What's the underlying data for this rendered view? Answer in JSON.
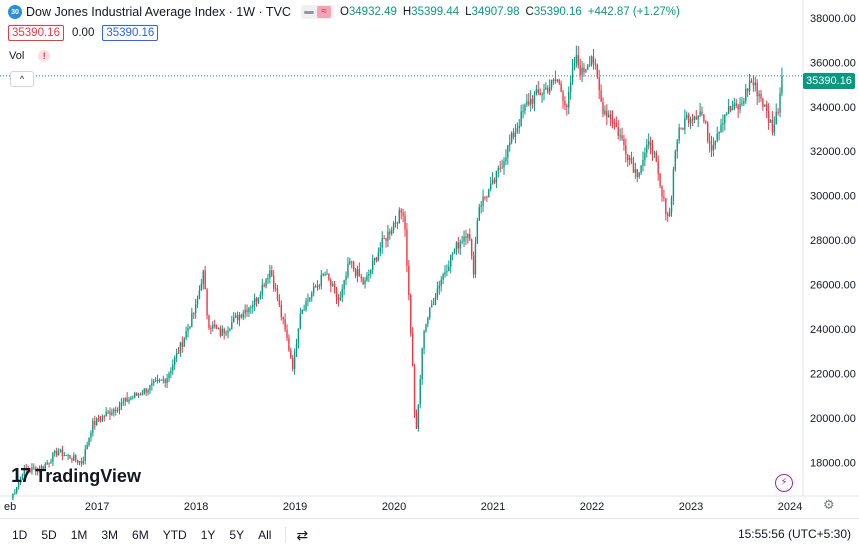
{
  "header": {
    "symbol_badge": "30",
    "title": "Dow Jones Industrial Average Index · 1W · TVC",
    "ohlc": [
      {
        "label": "O",
        "value": "34932.49"
      },
      {
        "label": "H",
        "value": "35399.44"
      },
      {
        "label": "L",
        "value": "34907.98"
      },
      {
        "label": "C",
        "value": "35390.16"
      }
    ],
    "change": "+442.87 (+1.27%)",
    "bid": "35390.16",
    "spread": "0.00",
    "ask": "35390.16",
    "vol_label": "Vol",
    "vol_warning": "!",
    "collapse": "^"
  },
  "logo": {
    "mark": "17",
    "text": "TradingView"
  },
  "toolbar": {
    "timeframes": [
      "1D",
      "5D",
      "1M",
      "3M",
      "6M",
      "YTD",
      "1Y",
      "5Y",
      "All"
    ],
    "time": "15:55:56 (UTC+5:30)"
  },
  "colors": {
    "up": "#089981",
    "down": "#f23645",
    "accent": "#2962ff"
  },
  "chart_data": {
    "type": "candlestick",
    "ylim": [
      16500,
      38800
    ],
    "y_ticks": [
      18000,
      20000,
      22000,
      24000,
      26000,
      28000,
      30000,
      32000,
      34000,
      36000,
      38000
    ],
    "y_tick_labels": [
      "18000.00",
      "20000.00",
      "22000.00",
      "24000.00",
      "26000.00",
      "28000.00",
      "30000.00",
      "32000.00",
      "34000.00",
      "36000.00",
      "38000.00"
    ],
    "x_tick_labels": [
      "eb",
      "2017",
      "2018",
      "2019",
      "2020",
      "2021",
      "2022",
      "2023",
      "2024"
    ],
    "x_tick_years": [
      2016.13,
      2017,
      2018,
      2019,
      2020,
      2021,
      2022,
      2023,
      2024
    ],
    "last_price": 35390.16,
    "last_price_label": "35390.16",
    "series": [
      {
        "name": "",
        "points": [
          [
            2016.13,
            16400
          ],
          [
            2016.25,
            17600
          ],
          [
            2016.45,
            17800
          ],
          [
            2016.6,
            18500
          ],
          [
            2016.85,
            18000
          ],
          [
            2016.95,
            19700
          ],
          [
            2017.1,
            20200
          ],
          [
            2017.3,
            20800
          ],
          [
            2017.5,
            21300
          ],
          [
            2017.7,
            21800
          ],
          [
            2017.85,
            23300
          ],
          [
            2018.0,
            25000
          ],
          [
            2018.07,
            26600
          ],
          [
            2018.12,
            24300
          ],
          [
            2018.25,
            23800
          ],
          [
            2018.45,
            24700
          ],
          [
            2018.6,
            25300
          ],
          [
            2018.75,
            26700
          ],
          [
            2018.92,
            23500
          ],
          [
            2018.98,
            22300
          ],
          [
            2019.05,
            24800
          ],
          [
            2019.3,
            26500
          ],
          [
            2019.45,
            25200
          ],
          [
            2019.55,
            27000
          ],
          [
            2019.7,
            26000
          ],
          [
            2019.85,
            27600
          ],
          [
            2020.0,
            28800
          ],
          [
            2020.1,
            29400
          ],
          [
            2020.18,
            23000
          ],
          [
            2020.22,
            19000
          ],
          [
            2020.3,
            24000
          ],
          [
            2020.45,
            26000
          ],
          [
            2020.6,
            27500
          ],
          [
            2020.75,
            28500
          ],
          [
            2020.8,
            26500
          ],
          [
            2020.85,
            29500
          ],
          [
            2021.0,
            30500
          ],
          [
            2021.2,
            32700
          ],
          [
            2021.35,
            34200
          ],
          [
            2021.5,
            34700
          ],
          [
            2021.65,
            35200
          ],
          [
            2021.75,
            34000
          ],
          [
            2021.83,
            36200
          ],
          [
            2021.9,
            35500
          ],
          [
            2022.0,
            36400
          ],
          [
            2022.1,
            34000
          ],
          [
            2022.2,
            33500
          ],
          [
            2022.35,
            32000
          ],
          [
            2022.45,
            31000
          ],
          [
            2022.6,
            32500
          ],
          [
            2022.7,
            30000
          ],
          [
            2022.78,
            29000
          ],
          [
            2022.85,
            32500
          ],
          [
            2022.95,
            33500
          ],
          [
            2023.1,
            33800
          ],
          [
            2023.2,
            32200
          ],
          [
            2023.35,
            33800
          ],
          [
            2023.5,
            34000
          ],
          [
            2023.6,
            35200
          ],
          [
            2023.7,
            34500
          ],
          [
            2023.78,
            33500
          ],
          [
            2023.83,
            33000
          ],
          [
            2023.88,
            34000
          ],
          [
            2023.92,
            35390
          ]
        ]
      }
    ]
  }
}
